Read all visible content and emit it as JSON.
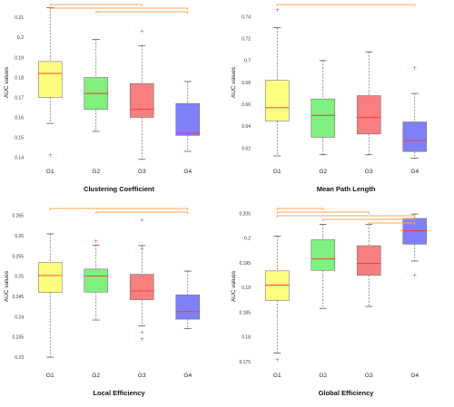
{
  "colors": {
    "G1": "#ffff7f",
    "G2": "#80f080",
    "G3": "#f87f7f",
    "G4": "#7f7ff8",
    "median": "#ff3333",
    "outlier": "#ff3333",
    "bracket": "#f4a460",
    "border": "#777777"
  },
  "chart_data": [
    {
      "type": "box",
      "title": "Clustering Coefficient",
      "xlabel": "",
      "ylabel": "AUC values",
      "categories": [
        "G1",
        "G2",
        "G3",
        "G4"
      ],
      "ylim": [
        0.138,
        0.217
      ],
      "yticks": [
        0.14,
        0.15,
        0.16,
        0.17,
        0.18,
        0.19,
        0.2,
        0.21
      ],
      "ytick_labels": [
        "0.14",
        "0.15",
        "0.16",
        "0.17",
        "0.18",
        "0.19",
        "0.2",
        "0.21"
      ],
      "boxes": [
        {
          "group": "G1",
          "whisker_low": 0.157,
          "q1": 0.17,
          "median": 0.182,
          "q3": 0.188,
          "whisker_high": 0.215,
          "outliers": [
            0.141
          ]
        },
        {
          "group": "G2",
          "whisker_low": 0.153,
          "q1": 0.164,
          "median": 0.172,
          "q3": 0.18,
          "whisker_high": 0.199,
          "outliers": []
        },
        {
          "group": "G3",
          "whisker_low": 0.139,
          "q1": 0.16,
          "median": 0.164,
          "q3": 0.177,
          "whisker_high": 0.196,
          "outliers": [
            0.203
          ]
        },
        {
          "group": "G4",
          "whisker_low": 0.143,
          "q1": 0.151,
          "median": 0.152,
          "q3": 0.167,
          "whisker_high": 0.178,
          "outliers": []
        }
      ],
      "brackets": [
        [
          "G1",
          "G3"
        ],
        [
          "G1",
          "G4"
        ],
        [
          "G2",
          "G4"
        ]
      ]
    },
    {
      "type": "box",
      "title": "Mean Path Length",
      "xlabel": "",
      "ylabel": "AUC values",
      "categories": [
        "G1",
        "G2",
        "G3",
        "G4"
      ],
      "ylim": [
        0.608,
        0.752
      ],
      "yticks": [
        0.62,
        0.64,
        0.66,
        0.68,
        0.7,
        0.72,
        0.74
      ],
      "ytick_labels": [
        "0.62",
        "0.64",
        "0.66",
        "0.68",
        "0.7",
        "0.72",
        "0.74"
      ],
      "boxes": [
        {
          "group": "G1",
          "whisker_low": 0.613,
          "q1": 0.645,
          "median": 0.657,
          "q3": 0.682,
          "whisker_high": 0.73,
          "outliers": [
            0.746
          ]
        },
        {
          "group": "G2",
          "whisker_low": 0.614,
          "q1": 0.63,
          "median": 0.65,
          "q3": 0.665,
          "whisker_high": 0.7,
          "outliers": []
        },
        {
          "group": "G3",
          "whisker_low": 0.614,
          "q1": 0.633,
          "median": 0.648,
          "q3": 0.668,
          "whisker_high": 0.708,
          "outliers": []
        },
        {
          "group": "G4",
          "whisker_low": 0.611,
          "q1": 0.617,
          "median": 0.627,
          "q3": 0.644,
          "whisker_high": 0.67,
          "outliers": [
            0.693
          ]
        }
      ],
      "brackets": [
        [
          "G1",
          "G4"
        ]
      ]
    },
    {
      "type": "box",
      "title": "Local Efficiency",
      "xlabel": "",
      "ylabel": "AUC values",
      "categories": [
        "G1",
        "G2",
        "G3",
        "G4"
      ],
      "ylim": [
        0.228,
        0.267
      ],
      "yticks": [
        0.23,
        0.235,
        0.24,
        0.245,
        0.25,
        0.255,
        0.26,
        0.265
      ],
      "ytick_labels": [
        "0.23",
        "0.235",
        "0.24",
        "0.245",
        "0.25",
        "0.255",
        "0.26",
        "0.265"
      ],
      "boxes": [
        {
          "group": "G1",
          "whisker_low": 0.23,
          "q1": 0.246,
          "median": 0.2502,
          "q3": 0.2534,
          "whisker_high": 0.2605,
          "outliers": []
        },
        {
          "group": "G2",
          "whisker_low": 0.2392,
          "q1": 0.2461,
          "median": 0.2501,
          "q3": 0.2518,
          "whisker_high": 0.2577,
          "outliers": [
            0.2587
          ]
        },
        {
          "group": "G3",
          "whisker_low": 0.2377,
          "q1": 0.2442,
          "median": 0.2464,
          "q3": 0.2505,
          "whisker_high": 0.2576,
          "outliers": [
            0.2638,
            0.2568,
            0.2361,
            0.2344
          ]
        },
        {
          "group": "G4",
          "whisker_low": 0.2371,
          "q1": 0.2394,
          "median": 0.2413,
          "q3": 0.2454,
          "whisker_high": 0.2513,
          "outliers": []
        }
      ],
      "brackets": [
        [
          "G1",
          "G4"
        ],
        [
          "G2",
          "G4"
        ]
      ]
    },
    {
      "type": "box",
      "title": "Global Efficiency",
      "xlabel": "",
      "ylabel": "AUC values",
      "categories": [
        "G1",
        "G2",
        "G3",
        "G4"
      ],
      "ylim": [
        0.1743,
        0.2062
      ],
      "yticks": [
        0.175,
        0.18,
        0.185,
        0.19,
        0.195,
        0.2,
        0.205
      ],
      "ytick_labels": [
        "0.175",
        "0.18",
        "0.185",
        "0.19",
        "0.195",
        "0.2",
        "0.205"
      ],
      "boxes": [
        {
          "group": "G1",
          "whisker_low": 0.1768,
          "q1": 0.1874,
          "median": 0.1905,
          "q3": 0.1934,
          "whisker_high": 0.2004,
          "outliers": [
            0.1754
          ]
        },
        {
          "group": "G2",
          "whisker_low": 0.1858,
          "q1": 0.1935,
          "median": 0.1958,
          "q3": 0.1997,
          "whisker_high": 0.2028,
          "outliers": []
        },
        {
          "group": "G3",
          "whisker_low": 0.1862,
          "q1": 0.1925,
          "median": 0.1949,
          "q3": 0.1985,
          "whisker_high": 0.2028,
          "outliers": []
        },
        {
          "group": "G4",
          "whisker_low": 0.1954,
          "q1": 0.1988,
          "median": 0.2015,
          "q3": 0.204,
          "whisker_high": 0.2049,
          "outliers": [
            0.1925
          ]
        }
      ],
      "brackets": [
        [
          "G1",
          "G2"
        ],
        [
          "G1",
          "G3"
        ],
        [
          "G1",
          "G4"
        ],
        [
          "G2",
          "G4"
        ],
        [
          "G3",
          "G4"
        ]
      ]
    }
  ]
}
